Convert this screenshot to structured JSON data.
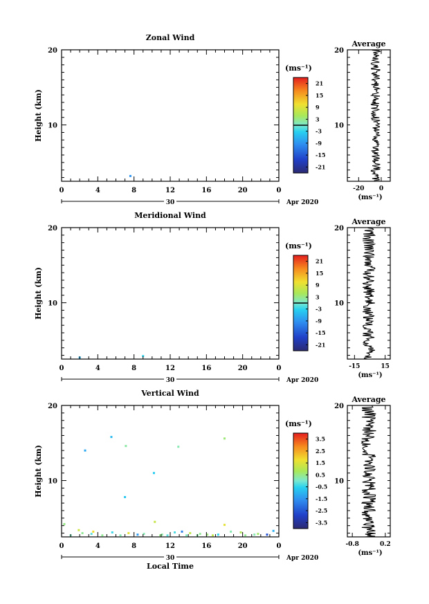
{
  "chart_data": [
    {
      "type": "heatmap",
      "title": "Zonal Wind",
      "xlabel": "",
      "ylabel": "Height (km)",
      "xlim": [
        0,
        24
      ],
      "ylim": [
        2.5,
        20
      ],
      "xticks": [
        "0",
        "4",
        "8",
        "12",
        "16",
        "20",
        "0"
      ],
      "yticks": [
        "10",
        "20"
      ],
      "date_center": "30",
      "date_label": "Apr 2020",
      "units": "(ms⁻¹)",
      "colorbar_ticks": [
        "21",
        "15",
        "9",
        "3",
        "-3",
        "-9",
        "-15",
        "-21"
      ],
      "colorbar_range": [
        -24,
        24
      ],
      "cells": [
        [
          7.6,
          3.2,
          -9
        ]
      ]
    },
    {
      "type": "line",
      "title": "Average",
      "xlabel": "(ms⁻¹)",
      "xticks": [
        "-20",
        "0"
      ],
      "xlim": [
        -30,
        8
      ],
      "ylim": [
        2.5,
        20
      ],
      "yticks": [
        "10",
        "20"
      ],
      "profile_center": -5,
      "profile_amp": 4,
      "profile_seed": 1
    },
    {
      "type": "heatmap",
      "title": "Meridional Wind",
      "xlabel": "",
      "ylabel": "Height (km)",
      "xlim": [
        0,
        24
      ],
      "ylim": [
        2.5,
        20
      ],
      "xticks": [
        "0",
        "4",
        "8",
        "12",
        "16",
        "20",
        "0"
      ],
      "yticks": [
        "10",
        "20"
      ],
      "date_center": "30",
      "date_label": "Apr 2020",
      "units": "(ms⁻¹)",
      "colorbar_ticks": [
        "21",
        "15",
        "9",
        "3",
        "-3",
        "-9",
        "-15",
        "-21"
      ],
      "colorbar_range": [
        -24,
        24
      ],
      "cells": [
        [
          2.0,
          2.7,
          -6
        ],
        [
          9.0,
          2.9,
          -3
        ]
      ]
    },
    {
      "type": "line",
      "title": "Average",
      "xlabel": "(ms⁻¹)",
      "xticks": [
        "-15",
        "15"
      ],
      "xlim": [
        -22,
        20
      ],
      "ylim": [
        2.5,
        20
      ],
      "yticks": [
        "10",
        "20"
      ],
      "profile_center": -1,
      "profile_amp": 6,
      "profile_seed": 2
    },
    {
      "type": "heatmap",
      "title": "Vertical Wind",
      "xlabel": "Local Time",
      "ylabel": "Height (km)",
      "xlim": [
        0,
        24
      ],
      "ylim": [
        2.5,
        20
      ],
      "xticks": [
        "0",
        "4",
        "8",
        "12",
        "16",
        "20",
        "0"
      ],
      "yticks": [
        "10",
        "20"
      ],
      "date_center": "30",
      "date_label": "Apr 2020",
      "units": "(ms⁻¹)",
      "colorbar_ticks": [
        "3.5",
        "2.5",
        "1.5",
        "0.5",
        "-0.5",
        "-1.5",
        "-2.5",
        "-3.5"
      ],
      "colorbar_range": [
        -4,
        4
      ],
      "cells": [
        [
          5.5,
          15.8,
          -0.9
        ],
        [
          2.6,
          14.0,
          -1.2
        ],
        [
          7.1,
          14.6,
          0.3
        ],
        [
          12.9,
          14.5,
          0.2
        ],
        [
          18.0,
          15.6,
          0.6
        ],
        [
          10.2,
          11.0,
          -0.6
        ],
        [
          7.0,
          7.8,
          -0.7
        ],
        [
          10.3,
          4.5,
          1.2
        ],
        [
          18.0,
          4.1,
          1.6
        ],
        [
          0.3,
          4.2,
          0.5
        ],
        [
          1.9,
          3.4,
          1.3
        ],
        [
          2.3,
          3.0,
          0.4
        ],
        [
          3.3,
          2.9,
          -0.2
        ],
        [
          3.5,
          3.2,
          1.8
        ],
        [
          4.5,
          2.7,
          0.4
        ],
        [
          5.6,
          3.1,
          -0.4
        ],
        [
          7.4,
          3.0,
          1.6
        ],
        [
          8.4,
          2.8,
          -1.4
        ],
        [
          9.1,
          2.9,
          0.2
        ],
        [
          11.1,
          2.8,
          0.3
        ],
        [
          12.5,
          3.1,
          -0.3
        ],
        [
          13.3,
          3.2,
          -1.8
        ],
        [
          14.2,
          3.0,
          1.1
        ],
        [
          15.3,
          2.9,
          0.4
        ],
        [
          16.1,
          2.8,
          0.6
        ],
        [
          17.3,
          2.8,
          -0.5
        ],
        [
          18.7,
          3.2,
          0.2
        ],
        [
          19.8,
          3.1,
          0.9
        ],
        [
          21.7,
          2.9,
          0.7
        ],
        [
          22.7,
          2.8,
          -2.6
        ],
        [
          23.4,
          3.3,
          -1.1
        ],
        [
          1.0,
          2.7,
          0.1
        ],
        [
          6.5,
          2.7,
          0.2
        ],
        [
          10.9,
          2.7,
          0.5
        ],
        [
          13.8,
          2.7,
          0.1
        ],
        [
          16.7,
          2.7,
          1.1
        ],
        [
          20.3,
          2.7,
          0.4
        ],
        [
          11.7,
          2.7,
          -0.2
        ],
        [
          15.0,
          2.7,
          0.3
        ],
        [
          21.3,
          2.8,
          0.2
        ]
      ]
    },
    {
      "type": "line",
      "title": "Average",
      "xlabel": "(ms⁻¹)",
      "xticks": [
        "-0.8",
        "0.2"
      ],
      "xlim": [
        -0.95,
        0.35
      ],
      "ylim": [
        2.5,
        20
      ],
      "yticks": [
        "10",
        "20"
      ],
      "profile_center": -0.3,
      "profile_amp": 0.22,
      "profile_seed": 3
    }
  ]
}
